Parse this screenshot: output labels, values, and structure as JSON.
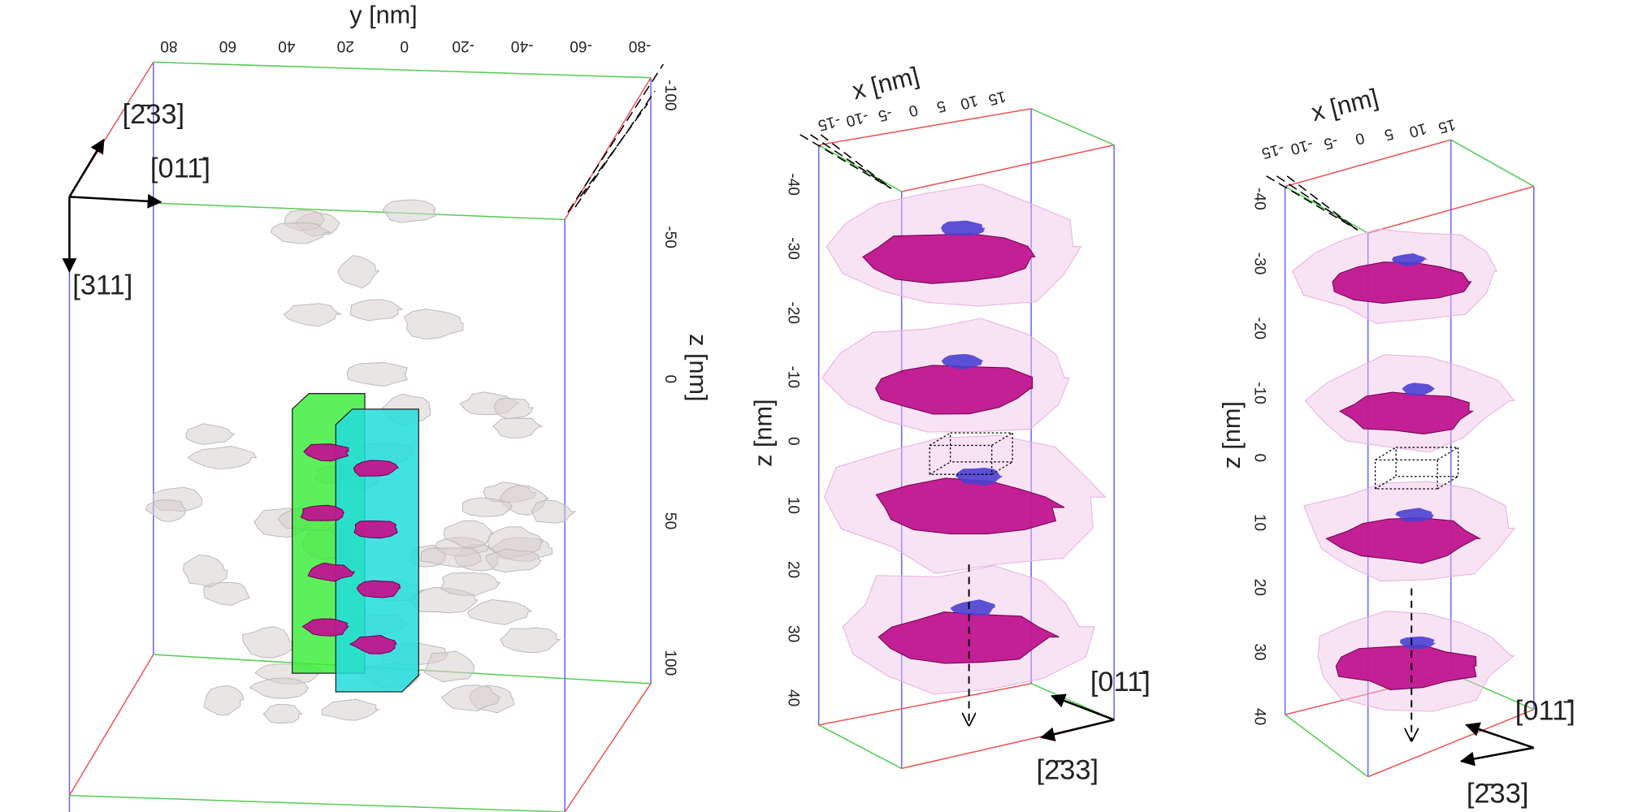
{
  "panels": [
    {
      "axis_labels": {
        "y": "y [nm]",
        "z": "z [nm]"
      },
      "y_ticks": [
        "80",
        "60",
        "40",
        "20",
        "0",
        "-20",
        "-40",
        "-60",
        "-80"
      ],
      "z_ticks": [
        "-100",
        "-50",
        "0",
        "50",
        "100"
      ],
      "directions": [
        "[2̄33]",
        "[011̄]",
        "[311]"
      ]
    },
    {
      "axis_labels": {
        "x": "x [nm]",
        "z": "z [nm]"
      },
      "x_ticks": [
        "-15",
        "-10",
        "-5",
        "0",
        "5",
        "10",
        "15"
      ],
      "z_ticks": [
        "-40",
        "-30",
        "-20",
        "-10",
        "0",
        "10",
        "20",
        "30",
        "40"
      ],
      "directions": [
        "[011̄]",
        "[2̄33]"
      ]
    },
    {
      "axis_labels": {
        "x": "x [nm]",
        "z": "z [nm]"
      },
      "x_ticks": [
        "-15",
        "-10",
        "-5",
        "0",
        "5",
        "10",
        "15"
      ],
      "z_ticks": [
        "-40",
        "-30",
        "-20",
        "-10",
        "0",
        "10",
        "20",
        "30",
        "40"
      ],
      "directions": [
        "[011̄]",
        "[2̄33]"
      ]
    }
  ]
}
